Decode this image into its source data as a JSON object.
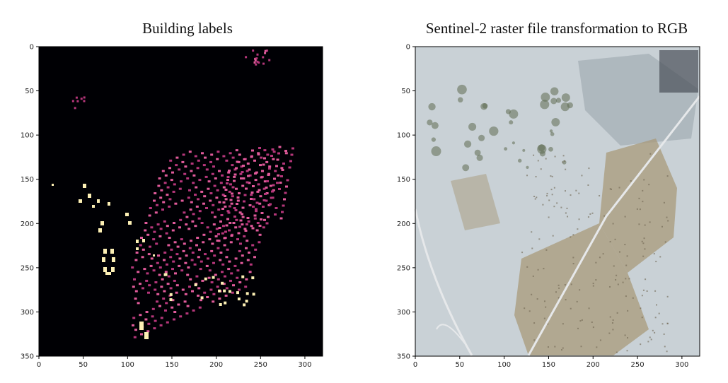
{
  "chart_data": [
    {
      "type": "heatmap",
      "title": "Building labels",
      "xlim": [
        0,
        320
      ],
      "ylim": [
        350,
        0
      ],
      "x_ticks": [
        "0",
        "50",
        "100",
        "150",
        "200",
        "250",
        "300"
      ],
      "y_ticks": [
        "0",
        "50",
        "100",
        "150",
        "200",
        "250",
        "300",
        "350"
      ],
      "colormap": "magma",
      "background_color": "#000004",
      "label_colors": [
        "#b5367a",
        "#e05a9a",
        "#fcefb4"
      ]
    },
    {
      "type": "image",
      "title": "Sentinel-2 raster file transformation to RGB",
      "xlim": [
        0,
        320
      ],
      "ylim": [
        350,
        0
      ],
      "x_ticks": [
        "0",
        "50",
        "100",
        "150",
        "200",
        "250",
        "300"
      ],
      "y_ticks": [
        "0",
        "50",
        "100",
        "150",
        "200",
        "250",
        "300",
        "350"
      ],
      "colors": {
        "terrain": "#c9d1d6",
        "urban": "#a89a7a",
        "vegetation": "#5e6b52",
        "road": "#e6e8ea",
        "field": "#8e98a2"
      }
    }
  ]
}
